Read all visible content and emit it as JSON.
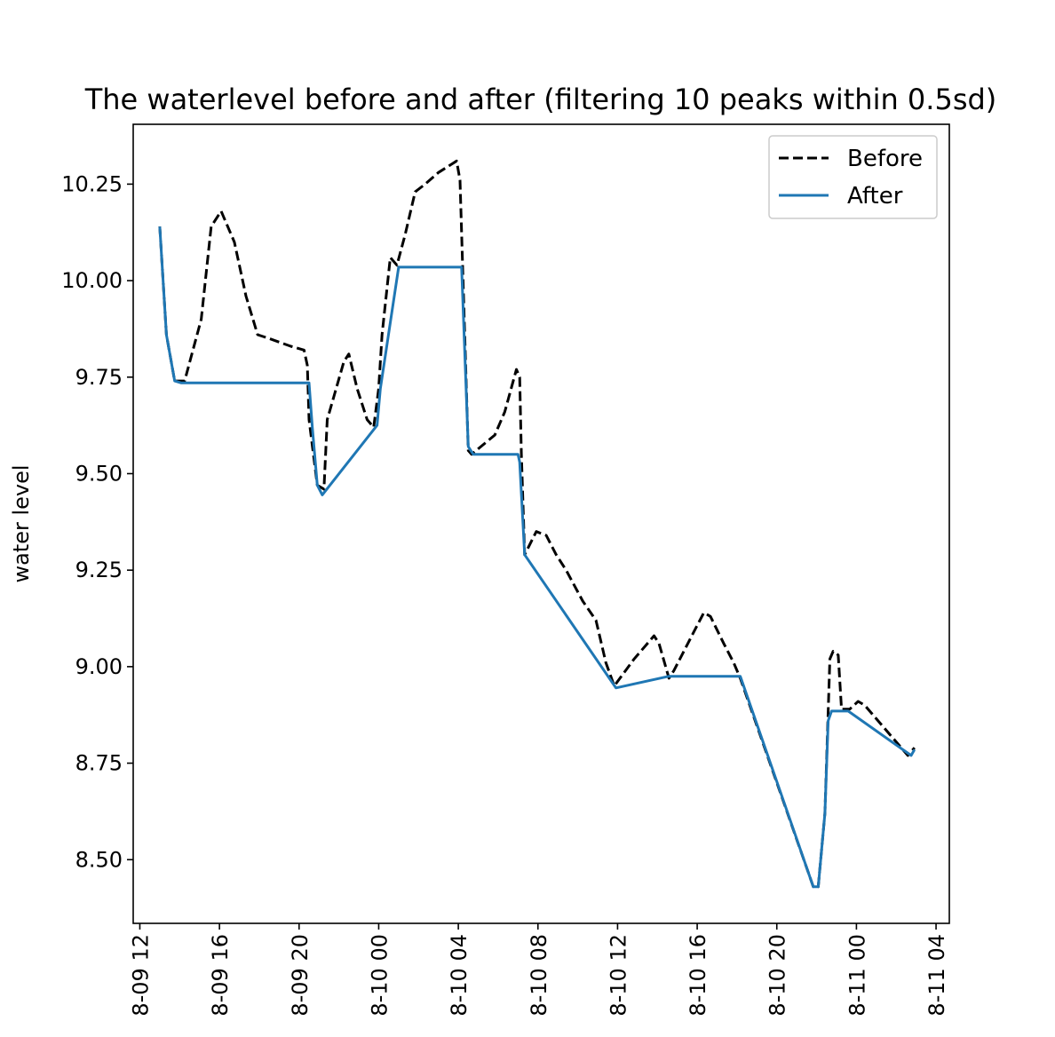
{
  "chart_data": {
    "type": "line",
    "title": "The waterlevel before and after (filtering 10 peaks within 0.5sd)",
    "xlabel": "",
    "ylabel": "water level",
    "xlim": [
      "2023-08-09 11:40",
      "2023-08-11 04:40"
    ],
    "ylim": [
      8.335,
      10.405
    ],
    "x_ticks": [
      {
        "t": "2023-08-09 12:00",
        "label": "8-09 12"
      },
      {
        "t": "2023-08-09 16:00",
        "label": "8-09 16"
      },
      {
        "t": "2023-08-09 20:00",
        "label": "8-09 20"
      },
      {
        "t": "2023-08-10 00:00",
        "label": "8-10 00"
      },
      {
        "t": "2023-08-10 04:00",
        "label": "8-10 04"
      },
      {
        "t": "2023-08-10 08:00",
        "label": "8-10 08"
      },
      {
        "t": "2023-08-10 12:00",
        "label": "8-10 12"
      },
      {
        "t": "2023-08-10 16:00",
        "label": "8-10 16"
      },
      {
        "t": "2023-08-10 20:00",
        "label": "8-10 20"
      },
      {
        "t": "2023-08-11 00:00",
        "label": "8-11 00"
      },
      {
        "t": "2023-08-11 04:00",
        "label": "8-11 04"
      }
    ],
    "y_ticks": [
      {
        "v": 8.5,
        "label": "8.50"
      },
      {
        "v": 8.75,
        "label": "8.75"
      },
      {
        "v": 9.0,
        "label": "9.00"
      },
      {
        "v": 9.25,
        "label": "9.25"
      },
      {
        "v": 9.5,
        "label": "9.50"
      },
      {
        "v": 9.75,
        "label": "9.75"
      },
      {
        "v": 10.0,
        "label": "10.00"
      },
      {
        "v": 10.25,
        "label": "10.25"
      }
    ],
    "grid": false,
    "legend_position": "top-right",
    "series": [
      {
        "name": "Before",
        "style": "dashed",
        "color": "#000000",
        "points": [
          [
            "2023-08-09 13:00",
            10.14
          ],
          [
            "2023-08-09 13:20",
            9.86
          ],
          [
            "2023-08-09 13:45",
            9.74
          ],
          [
            "2023-08-09 14:15",
            9.74
          ],
          [
            "2023-08-09 15:05",
            9.9
          ],
          [
            "2023-08-09 15:35",
            10.14
          ],
          [
            "2023-08-09 16:05",
            10.18
          ],
          [
            "2023-08-09 16:45",
            10.1
          ],
          [
            "2023-08-09 17:20",
            9.96
          ],
          [
            "2023-08-09 17:55",
            9.86
          ],
          [
            "2023-08-09 18:30",
            9.85
          ],
          [
            "2023-08-09 19:35",
            9.83
          ],
          [
            "2023-08-09 20:15",
            9.82
          ],
          [
            "2023-08-09 20:25",
            9.78
          ],
          [
            "2023-08-09 20:30",
            9.64
          ],
          [
            "2023-08-09 20:55",
            9.47
          ],
          [
            "2023-08-09 21:15",
            9.46
          ],
          [
            "2023-08-09 21:25",
            9.64
          ],
          [
            "2023-08-09 21:45",
            9.7
          ],
          [
            "2023-08-09 22:15",
            9.79
          ],
          [
            "2023-08-09 22:30",
            9.81
          ],
          [
            "2023-08-09 22:55",
            9.72
          ],
          [
            "2023-08-09 23:25",
            9.64
          ],
          [
            "2023-08-09 23:45",
            9.62
          ],
          [
            "2023-08-10 00:00",
            9.72
          ],
          [
            "2023-08-10 00:10",
            9.86
          ],
          [
            "2023-08-10 00:35",
            10.06
          ],
          [
            "2023-08-10 00:55",
            10.04
          ],
          [
            "2023-08-10 01:20",
            10.12
          ],
          [
            "2023-08-10 01:50",
            10.23
          ],
          [
            "2023-08-10 02:20",
            10.25
          ],
          [
            "2023-08-10 03:00",
            10.28
          ],
          [
            "2023-08-10 03:55",
            10.31
          ],
          [
            "2023-08-10 04:05",
            10.26
          ],
          [
            "2023-08-10 04:15",
            9.98
          ],
          [
            "2023-08-10 04:30",
            9.56
          ],
          [
            "2023-08-10 04:40",
            9.55
          ],
          [
            "2023-08-10 05:50",
            9.6
          ],
          [
            "2023-08-10 06:20",
            9.66
          ],
          [
            "2023-08-10 06:55",
            9.77
          ],
          [
            "2023-08-10 07:05",
            9.75
          ],
          [
            "2023-08-10 07:10",
            9.55
          ],
          [
            "2023-08-10 07:20",
            9.29
          ],
          [
            "2023-08-10 07:55",
            9.35
          ],
          [
            "2023-08-10 08:25",
            9.34
          ],
          [
            "2023-08-10 08:55",
            9.29
          ],
          [
            "2023-08-10 09:25",
            9.25
          ],
          [
            "2023-08-10 10:15",
            9.17
          ],
          [
            "2023-08-10 10:55",
            9.12
          ],
          [
            "2023-08-10 11:25",
            9.01
          ],
          [
            "2023-08-10 11:50",
            8.95
          ],
          [
            "2023-08-10 12:50",
            9.02
          ],
          [
            "2023-08-10 13:50",
            9.08
          ],
          [
            "2023-08-10 14:05",
            9.06
          ],
          [
            "2023-08-10 14:35",
            8.97
          ],
          [
            "2023-08-10 14:50",
            8.99
          ],
          [
            "2023-08-10 15:50",
            9.09
          ],
          [
            "2023-08-10 16:20",
            9.14
          ],
          [
            "2023-08-10 16:40",
            9.13
          ],
          [
            "2023-08-10 17:20",
            9.06
          ],
          [
            "2023-08-10 17:50",
            9.01
          ],
          [
            "2023-08-10 18:10",
            8.97
          ],
          [
            "2023-08-10 21:50",
            8.43
          ],
          [
            "2023-08-10 22:05",
            8.43
          ],
          [
            "2023-08-10 22:25",
            8.62
          ],
          [
            "2023-08-10 22:40",
            9.02
          ],
          [
            "2023-08-10 22:50",
            9.04
          ],
          [
            "2023-08-10 23:05",
            9.03
          ],
          [
            "2023-08-10 23:15",
            8.89
          ],
          [
            "2023-08-10 23:40",
            8.89
          ],
          [
            "2023-08-11 00:05",
            8.91
          ],
          [
            "2023-08-11 00:25",
            8.9
          ],
          [
            "2023-08-11 01:45",
            8.82
          ],
          [
            "2023-08-11 02:35",
            8.77
          ],
          [
            "2023-08-11 02:55",
            8.79
          ]
        ]
      },
      {
        "name": "After",
        "style": "solid",
        "color": "#1f77b4",
        "points": [
          [
            "2023-08-09 13:00",
            10.14
          ],
          [
            "2023-08-09 13:20",
            9.86
          ],
          [
            "2023-08-09 13:45",
            9.74
          ],
          [
            "2023-08-09 14:05",
            9.735
          ],
          [
            "2023-08-09 20:30",
            9.735
          ],
          [
            "2023-08-09 20:40",
            9.62
          ],
          [
            "2023-08-09 20:55",
            9.47
          ],
          [
            "2023-08-09 21:10",
            9.445
          ],
          [
            "2023-08-09 23:55",
            9.625
          ],
          [
            "2023-08-10 00:05",
            9.72
          ],
          [
            "2023-08-10 01:00",
            10.035
          ],
          [
            "2023-08-10 04:10",
            10.035
          ],
          [
            "2023-08-10 04:30",
            9.57
          ],
          [
            "2023-08-10 04:45",
            9.55
          ],
          [
            "2023-08-10 07:00",
            9.55
          ],
          [
            "2023-08-10 07:05",
            9.53
          ],
          [
            "2023-08-10 07:20",
            9.29
          ],
          [
            "2023-08-10 11:55",
            8.945
          ],
          [
            "2023-08-10 14:35",
            8.975
          ],
          [
            "2023-08-10 18:10",
            8.975
          ],
          [
            "2023-08-10 21:50",
            8.43
          ],
          [
            "2023-08-10 22:05",
            8.43
          ],
          [
            "2023-08-10 22:25",
            8.62
          ],
          [
            "2023-08-10 22:35",
            8.86
          ],
          [
            "2023-08-10 22:45",
            8.885
          ],
          [
            "2023-08-10 23:35",
            8.885
          ],
          [
            "2023-08-11 02:45",
            8.77
          ],
          [
            "2023-08-11 02:55",
            8.785
          ]
        ]
      }
    ]
  }
}
